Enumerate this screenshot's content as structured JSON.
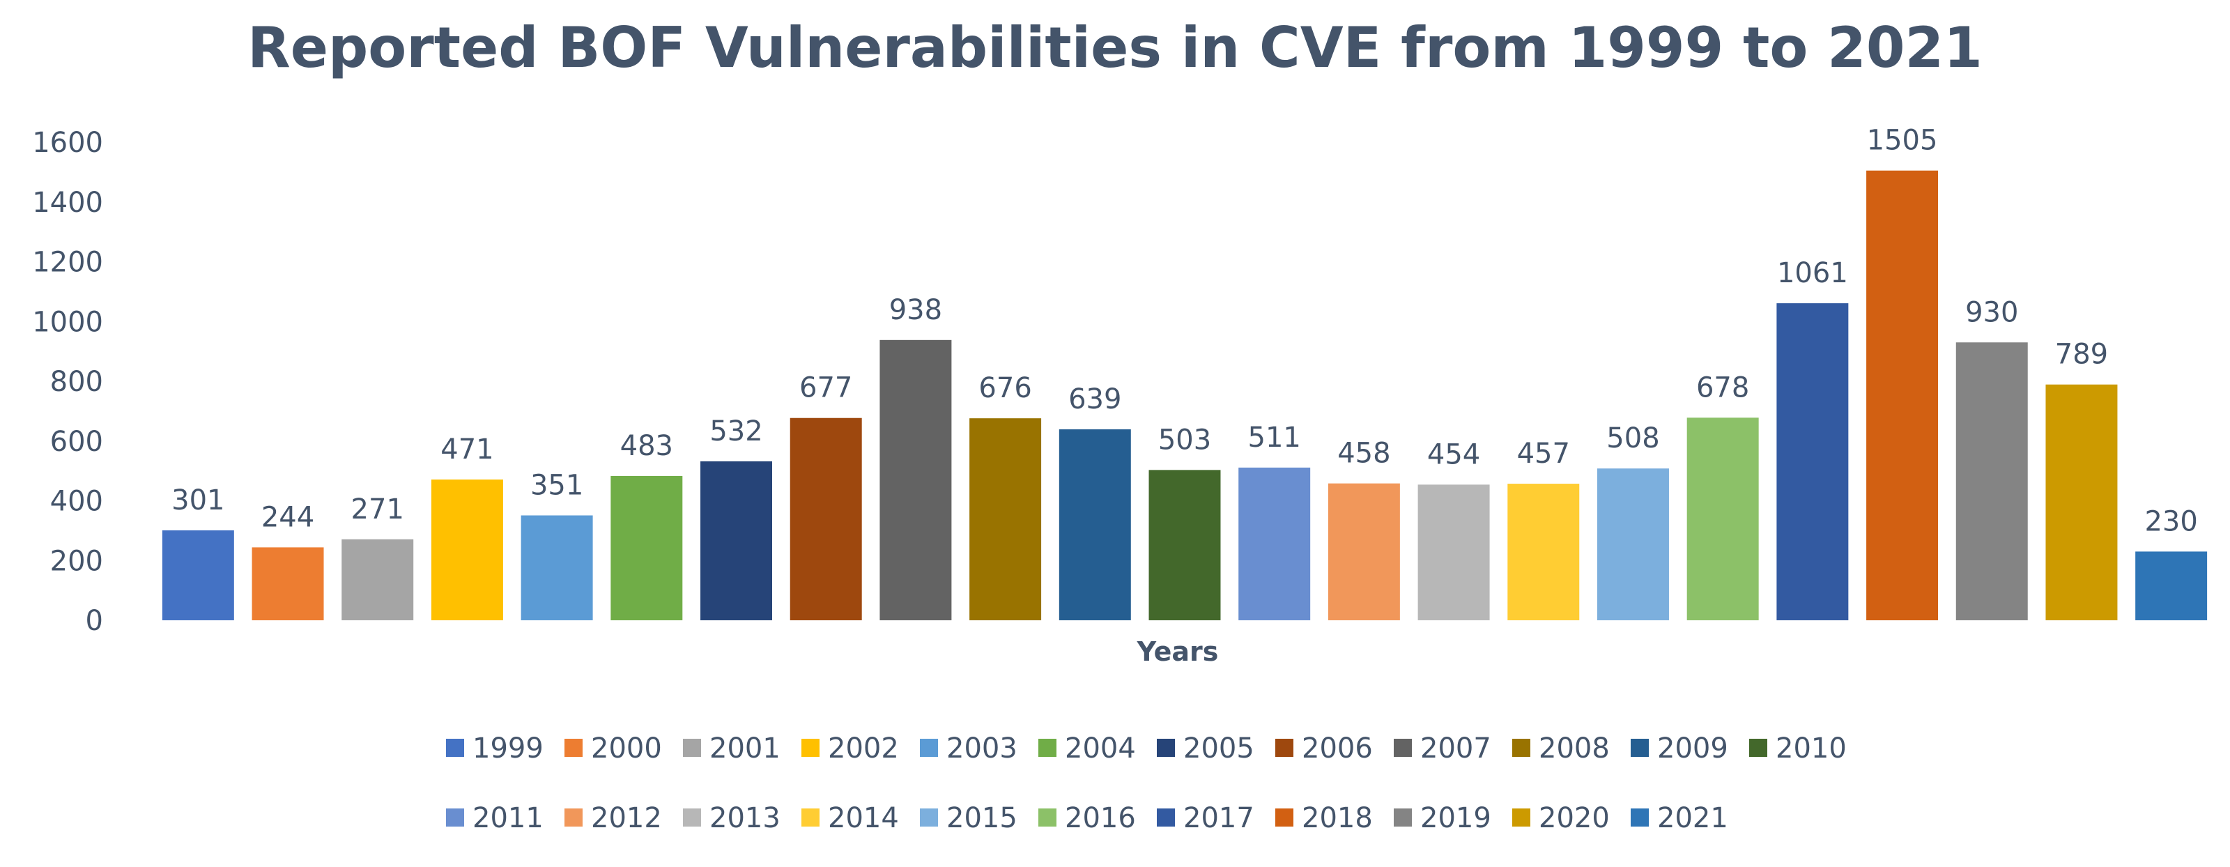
{
  "chart_data": {
    "type": "bar",
    "title": "Reported BOF Vulnerabilities in CVE from 1999 to 2021",
    "xlabel": "Years",
    "ylabel": "",
    "ylim": [
      0,
      1600
    ],
    "yticks": [
      0,
      200,
      400,
      600,
      800,
      1000,
      1200,
      1400,
      1600
    ],
    "grid": false,
    "legend_position": "bottom",
    "categories": [
      "1999",
      "2000",
      "2001",
      "2002",
      "2003",
      "2004",
      "2005",
      "2006",
      "2007",
      "2008",
      "2009",
      "2010",
      "2011",
      "2012",
      "2013",
      "2014",
      "2015",
      "2016",
      "2017",
      "2018",
      "2019",
      "2020",
      "2021"
    ],
    "values": [
      301,
      244,
      271,
      471,
      351,
      483,
      532,
      677,
      938,
      676,
      639,
      503,
      511,
      458,
      454,
      457,
      508,
      678,
      1061,
      1505,
      930,
      789,
      230
    ],
    "colors": [
      "#4472c4",
      "#ed7d31",
      "#a5a5a5",
      "#ffc000",
      "#5b9bd5",
      "#70ad47",
      "#264478",
      "#9e480e",
      "#636363",
      "#997300",
      "#255e91",
      "#43682b",
      "#698ed0",
      "#f1975a",
      "#b7b7b7",
      "#ffcd33",
      "#7cafdd",
      "#8cc168",
      "#335aa1",
      "#d26012",
      "#848484",
      "#cc9a00",
      "#2e75b6"
    ],
    "legend_rows": [
      [
        "1999",
        "2000",
        "2001",
        "2002",
        "2003",
        "2004",
        "2005",
        "2006",
        "2007",
        "2008",
        "2009",
        "2010"
      ],
      [
        "2011",
        "2012",
        "2013",
        "2014",
        "2015",
        "2016",
        "2017",
        "2018",
        "2019",
        "2020",
        "2021"
      ]
    ]
  }
}
